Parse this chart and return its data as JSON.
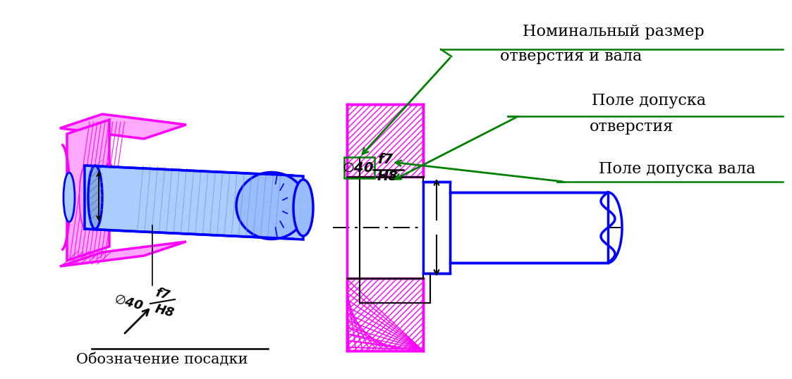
{
  "bg_color": "#ffffff",
  "black": "#000000",
  "green": "#008000",
  "magenta": "#ff00ff",
  "blue": "#0000ff",
  "title_left": "Обозначение посадки",
  "label1a": "Номинальный размер",
  "label1b": "отверстия и вала",
  "label2a": "Поле допуска",
  "label2b": "отверстия",
  "label3": "Поле допуска вала"
}
